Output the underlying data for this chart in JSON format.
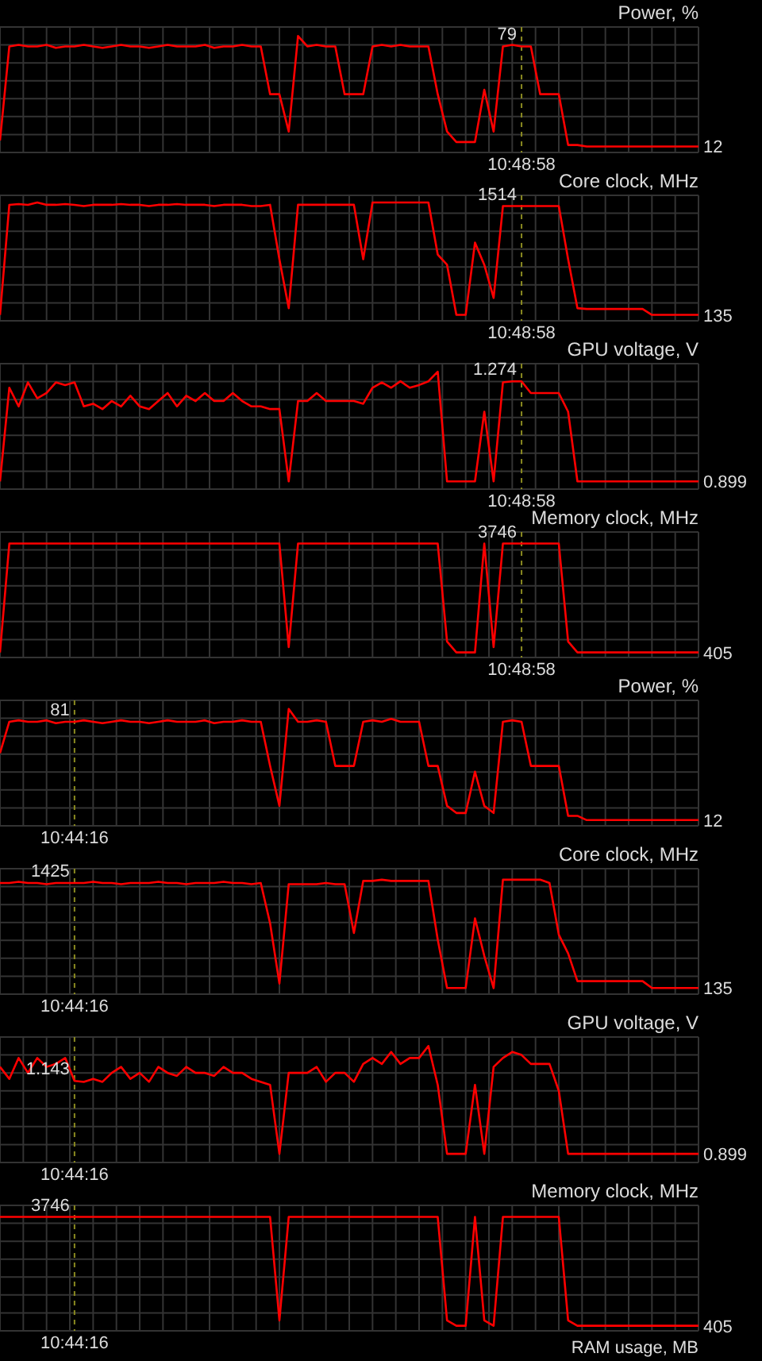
{
  "chart_data": [
    {
      "type": "line",
      "title": "Power, %",
      "grid": true,
      "ylim": [
        8,
        92
      ],
      "categories": [
        null,
        null,
        null,
        null,
        null,
        null,
        null,
        null,
        null,
        null,
        null,
        null,
        null,
        null,
        null,
        null,
        null,
        null,
        null,
        null,
        null,
        null,
        null,
        null,
        null,
        null,
        null,
        null,
        null,
        null,
        null,
        null,
        null,
        null,
        null,
        null,
        null,
        null,
        null,
        null,
        null,
        null,
        null,
        null,
        null,
        null,
        null,
        null,
        null,
        null,
        null,
        null,
        null,
        null,
        null,
        null,
        null,
        null,
        null,
        null,
        null,
        null,
        null,
        null,
        null,
        null,
        null,
        null,
        null,
        null,
        null,
        null,
        null,
        null,
        null,
        null
      ],
      "series": [
        {
          "color": "#ff0000",
          "values": [
            16,
            79,
            80,
            79,
            79,
            80,
            78,
            79,
            79,
            80,
            79,
            78,
            79,
            80,
            79,
            79,
            78,
            79,
            80,
            79,
            79,
            79,
            80,
            78,
            79,
            79,
            80,
            79,
            79,
            47,
            47,
            22,
            86,
            79,
            80,
            79,
            79,
            47,
            47,
            47,
            79,
            80,
            79,
            80,
            79,
            79,
            79,
            47,
            22,
            15,
            15,
            15,
            50,
            22,
            79,
            80,
            79,
            79,
            47,
            47,
            47,
            13,
            13,
            12,
            12,
            12,
            12,
            12,
            12,
            12,
            12,
            12,
            12,
            12,
            12,
            12
          ],
          "value_labels": [
            null,
            null,
            null,
            null,
            null,
            null,
            null,
            null,
            null,
            null,
            null,
            null,
            null,
            null,
            null,
            null,
            null,
            null,
            null,
            null,
            null,
            null,
            null,
            null,
            null,
            null,
            null,
            null,
            null,
            null,
            null,
            null,
            null,
            null,
            null,
            null,
            null,
            null,
            null,
            null,
            null,
            null,
            null,
            null,
            null,
            null,
            null,
            null,
            null,
            null,
            null,
            null,
            null,
            null,
            null,
            null,
            "79",
            null,
            null,
            null,
            null,
            null,
            null,
            null,
            null,
            null,
            null,
            null,
            null,
            null,
            null,
            null,
            null,
            null,
            null,
            "12"
          ]
        }
      ],
      "annotations": [
        "10:48:58"
      ]
    },
    {
      "type": "line",
      "title": "Core clock, MHz",
      "grid": true,
      "ylim": [
        60,
        1650
      ],
      "categories": [
        null,
        null,
        null,
        null,
        null,
        null,
        null,
        null,
        null,
        null,
        null,
        null,
        null,
        null,
        null,
        null,
        null,
        null,
        null,
        null,
        null,
        null,
        null,
        null,
        null,
        null,
        null,
        null,
        null,
        null,
        null,
        null,
        null,
        null,
        null,
        null,
        null,
        null,
        null,
        null,
        null,
        null,
        null,
        null,
        null,
        null,
        null,
        null,
        null,
        null,
        null,
        null,
        null,
        null,
        null,
        null,
        null,
        null,
        null,
        null,
        null,
        null,
        null,
        null,
        null,
        null,
        null,
        null,
        null,
        null,
        null,
        null,
        null,
        null,
        null,
        null
      ],
      "series": [
        {
          "color": "#ff0000",
          "values": [
            135,
            1530,
            1540,
            1530,
            1560,
            1530,
            1530,
            1540,
            1530,
            1514,
            1530,
            1530,
            1530,
            1540,
            1530,
            1530,
            1514,
            1530,
            1530,
            1540,
            1530,
            1530,
            1530,
            1514,
            1530,
            1530,
            1530,
            1514,
            1514,
            1530,
            840,
            220,
            1530,
            1530,
            1530,
            1530,
            1530,
            1530,
            1530,
            840,
            1560,
            1560,
            1560,
            1560,
            1560,
            1560,
            1560,
            900,
            770,
            135,
            135,
            1050,
            770,
            350,
            1514,
            1514,
            1514,
            1514,
            1514,
            1514,
            1514,
            840,
            220,
            210,
            210,
            210,
            210,
            210,
            210,
            210,
            135,
            135,
            135,
            135,
            135,
            135
          ],
          "value_labels": [
            null,
            null,
            null,
            null,
            null,
            null,
            null,
            null,
            null,
            null,
            null,
            null,
            null,
            null,
            null,
            null,
            null,
            null,
            null,
            null,
            null,
            null,
            null,
            null,
            null,
            null,
            null,
            null,
            null,
            null,
            null,
            null,
            null,
            null,
            null,
            null,
            null,
            null,
            null,
            null,
            null,
            null,
            null,
            null,
            null,
            null,
            null,
            null,
            null,
            null,
            null,
            null,
            null,
            null,
            null,
            null,
            "1514",
            null,
            null,
            null,
            null,
            null,
            null,
            null,
            null,
            null,
            null,
            null,
            null,
            null,
            null,
            null,
            null,
            null,
            null,
            "135"
          ]
        }
      ],
      "annotations": [
        "10:48:58"
      ]
    },
    {
      "type": "line",
      "title": "GPU voltage, V",
      "grid": true,
      "ylim": [
        0.87,
        1.34
      ],
      "categories": [
        null,
        null,
        null,
        null,
        null,
        null,
        null,
        null,
        null,
        null,
        null,
        null,
        null,
        null,
        null,
        null,
        null,
        null,
        null,
        null,
        null,
        null,
        null,
        null,
        null,
        null,
        null,
        null,
        null,
        null,
        null,
        null,
        null,
        null,
        null,
        null,
        null,
        null,
        null,
        null,
        null,
        null,
        null,
        null,
        null,
        null,
        null,
        null,
        null,
        null,
        null,
        null,
        null,
        null,
        null,
        null,
        null,
        null,
        null,
        null,
        null,
        null,
        null,
        null,
        null,
        null,
        null,
        null,
        null,
        null,
        null,
        null,
        null,
        null,
        null,
        null
      ],
      "series": [
        {
          "color": "#ff0000",
          "values": [
            0.899,
            1.25,
            1.18,
            1.27,
            1.21,
            1.23,
            1.27,
            1.26,
            1.27,
            1.18,
            1.19,
            1.17,
            1.2,
            1.18,
            1.22,
            1.18,
            1.17,
            1.2,
            1.23,
            1.18,
            1.22,
            1.2,
            1.23,
            1.2,
            1.2,
            1.23,
            1.2,
            1.18,
            1.18,
            1.17,
            1.17,
            0.899,
            1.2,
            1.2,
            1.23,
            1.2,
            1.2,
            1.2,
            1.2,
            1.19,
            1.25,
            1.27,
            1.25,
            1.274,
            1.25,
            1.26,
            1.274,
            1.31,
            0.899,
            0.899,
            0.899,
            0.899,
            1.16,
            0.899,
            1.27,
            1.274,
            1.274,
            1.23,
            1.23,
            1.23,
            1.23,
            1.16,
            0.899,
            0.899,
            0.899,
            0.899,
            0.899,
            0.899,
            0.899,
            0.899,
            0.899,
            0.899,
            0.899,
            0.899,
            0.899,
            0.899
          ],
          "value_labels": [
            null,
            null,
            null,
            null,
            null,
            null,
            null,
            null,
            null,
            null,
            null,
            null,
            null,
            null,
            null,
            null,
            null,
            null,
            null,
            null,
            null,
            null,
            null,
            null,
            null,
            null,
            null,
            null,
            null,
            null,
            null,
            null,
            null,
            null,
            null,
            null,
            null,
            null,
            null,
            null,
            null,
            null,
            null,
            null,
            null,
            null,
            null,
            null,
            null,
            null,
            null,
            null,
            null,
            null,
            null,
            null,
            "1.274",
            null,
            null,
            null,
            null,
            null,
            null,
            null,
            null,
            null,
            null,
            null,
            null,
            null,
            null,
            null,
            null,
            null,
            null,
            "0.899"
          ]
        }
      ],
      "annotations": [
        "10:48:58"
      ]
    },
    {
      "type": "line",
      "title": "Memory clock, MHz",
      "grid": true,
      "ylim": [
        250,
        4100
      ],
      "categories": [
        null,
        null,
        null,
        null,
        null,
        null,
        null,
        null,
        null,
        null,
        null,
        null,
        null,
        null,
        null,
        null,
        null,
        null,
        null,
        null,
        null,
        null,
        null,
        null,
        null,
        null,
        null,
        null,
        null,
        null,
        null,
        null,
        null,
        null,
        null,
        null,
        null,
        null,
        null,
        null,
        null,
        null,
        null,
        null,
        null,
        null,
        null,
        null,
        null,
        null,
        null,
        null,
        null,
        null,
        null,
        null,
        null,
        null,
        null,
        null,
        null,
        null,
        null,
        null,
        null,
        null,
        null,
        null,
        null,
        null,
        null,
        null,
        null,
        null,
        null,
        null
      ],
      "series": [
        {
          "color": "#ff0000",
          "values": [
            405,
            3746,
            3746,
            3746,
            3746,
            3746,
            3746,
            3746,
            3746,
            3746,
            3746,
            3746,
            3746,
            3746,
            3746,
            3746,
            3746,
            3746,
            3746,
            3746,
            3746,
            3746,
            3746,
            3746,
            3746,
            3746,
            3746,
            3746,
            3746,
            3746,
            3746,
            570,
            3746,
            3746,
            3746,
            3746,
            3746,
            3746,
            3746,
            3746,
            3746,
            3746,
            3746,
            3746,
            3746,
            3746,
            3746,
            3746,
            740,
            405,
            405,
            405,
            3746,
            570,
            3746,
            3746,
            3746,
            3746,
            3746,
            3746,
            3746,
            740,
            405,
            405,
            405,
            405,
            405,
            405,
            405,
            405,
            405,
            405,
            405,
            405,
            405,
            405
          ],
          "value_labels": [
            null,
            null,
            null,
            null,
            null,
            null,
            null,
            null,
            null,
            null,
            null,
            null,
            null,
            null,
            null,
            null,
            null,
            null,
            null,
            null,
            null,
            null,
            null,
            null,
            null,
            null,
            null,
            null,
            null,
            null,
            null,
            null,
            null,
            null,
            null,
            null,
            null,
            null,
            null,
            null,
            null,
            null,
            null,
            null,
            null,
            null,
            null,
            null,
            null,
            null,
            null,
            null,
            null,
            null,
            null,
            null,
            "3746",
            null,
            null,
            null,
            null,
            null,
            null,
            null,
            null,
            null,
            null,
            null,
            null,
            null,
            null,
            null,
            null,
            null,
            null,
            "405"
          ]
        }
      ],
      "annotations": [
        "10:48:58"
      ]
    },
    {
      "type": "line",
      "title": "Power, %",
      "grid": true,
      "ylim": [
        8,
        96
      ],
      "categories": [
        null,
        null,
        null,
        null,
        null,
        null,
        null,
        null,
        null,
        null,
        null,
        null,
        null,
        null,
        null,
        null,
        null,
        null,
        null,
        null,
        null,
        null,
        null,
        null,
        null,
        null,
        null,
        null,
        null,
        null,
        null,
        null,
        null,
        null,
        null,
        null,
        null,
        null,
        null,
        null,
        null,
        null,
        null,
        null,
        null,
        null,
        null,
        null,
        null,
        null,
        null,
        null,
        null,
        null,
        null,
        null,
        null,
        null,
        null,
        null,
        null,
        null,
        null,
        null,
        null,
        null,
        null,
        null,
        null,
        null,
        null,
        null,
        null,
        null,
        null,
        null
      ],
      "series": [
        {
          "color": "#ff0000",
          "values": [
            59,
            81,
            82,
            81,
            81,
            82,
            80,
            81,
            81,
            82,
            81,
            80,
            81,
            82,
            81,
            81,
            80,
            81,
            82,
            81,
            81,
            81,
            82,
            80,
            81,
            81,
            82,
            81,
            81,
            50,
            22,
            90,
            81,
            81,
            82,
            81,
            50,
            50,
            50,
            81,
            82,
            81,
            83,
            81,
            81,
            81,
            50,
            50,
            22,
            17,
            17,
            46,
            22,
            17,
            81,
            82,
            81,
            50,
            50,
            50,
            50,
            15,
            15,
            12,
            12,
            12,
            12,
            12,
            12,
            12,
            12,
            12,
            12,
            12,
            12,
            12
          ],
          "value_labels": [
            null,
            null,
            null,
            null,
            null,
            null,
            null,
            null,
            "81",
            null,
            null,
            null,
            null,
            null,
            null,
            null,
            null,
            null,
            null,
            null,
            null,
            null,
            null,
            null,
            null,
            null,
            null,
            null,
            null,
            null,
            null,
            null,
            null,
            null,
            null,
            null,
            null,
            null,
            null,
            null,
            null,
            null,
            null,
            null,
            null,
            null,
            null,
            null,
            null,
            null,
            null,
            null,
            null,
            null,
            null,
            null,
            null,
            null,
            null,
            null,
            null,
            null,
            null,
            null,
            null,
            null,
            null,
            null,
            null,
            null,
            null,
            null,
            null,
            null,
            null,
            "12"
          ]
        }
      ],
      "annotations": [
        "10:44:16"
      ]
    },
    {
      "type": "line",
      "title": "Core clock, MHz",
      "grid": true,
      "ylim": [
        60,
        1600
      ],
      "categories": [
        null,
        null,
        null,
        null,
        null,
        null,
        null,
        null,
        null,
        null,
        null,
        null,
        null,
        null,
        null,
        null,
        null,
        null,
        null,
        null,
        null,
        null,
        null,
        null,
        null,
        null,
        null,
        null,
        null,
        null,
        null,
        null,
        null,
        null,
        null,
        null,
        null,
        null,
        null,
        null,
        null,
        null,
        null,
        null,
        null,
        null,
        null,
        null,
        null,
        null,
        null,
        null,
        null,
        null,
        null,
        null,
        null,
        null,
        null,
        null,
        null,
        null,
        null,
        null,
        null,
        null,
        null,
        null,
        null,
        null,
        null,
        null,
        null,
        null,
        null,
        null
      ],
      "series": [
        {
          "color": "#ff0000",
          "values": [
            1425,
            1425,
            1440,
            1425,
            1425,
            1410,
            1425,
            1425,
            1425,
            1425,
            1440,
            1425,
            1425,
            1410,
            1425,
            1425,
            1425,
            1440,
            1425,
            1425,
            1410,
            1425,
            1425,
            1425,
            1440,
            1425,
            1425,
            1410,
            1425,
            930,
            190,
            1410,
            1410,
            1410,
            1410,
            1425,
            1410,
            1410,
            810,
            1450,
            1450,
            1465,
            1450,
            1450,
            1450,
            1450,
            1450,
            730,
            135,
            135,
            135,
            990,
            530,
            135,
            1465,
            1465,
            1465,
            1465,
            1465,
            1425,
            790,
            560,
            220,
            220,
            220,
            220,
            220,
            220,
            220,
            220,
            135,
            135,
            135,
            135,
            135,
            135
          ],
          "value_labels": [
            null,
            null,
            null,
            null,
            null,
            null,
            null,
            null,
            "1425",
            null,
            null,
            null,
            null,
            null,
            null,
            null,
            null,
            null,
            null,
            null,
            null,
            null,
            null,
            null,
            null,
            null,
            null,
            null,
            null,
            null,
            null,
            null,
            null,
            null,
            null,
            null,
            null,
            null,
            null,
            null,
            null,
            null,
            null,
            null,
            null,
            null,
            null,
            null,
            null,
            null,
            null,
            null,
            null,
            null,
            null,
            null,
            null,
            null,
            null,
            null,
            null,
            null,
            null,
            null,
            null,
            null,
            null,
            null,
            null,
            null,
            null,
            null,
            null,
            null,
            null,
            "135"
          ]
        }
      ],
      "annotations": [
        "10:44:16"
      ]
    },
    {
      "type": "line",
      "title": "GPU voltage, V",
      "grid": true,
      "ylim": [
        0.87,
        1.29
      ],
      "categories": [
        null,
        null,
        null,
        null,
        null,
        null,
        null,
        null,
        null,
        null,
        null,
        null,
        null,
        null,
        null,
        null,
        null,
        null,
        null,
        null,
        null,
        null,
        null,
        null,
        null,
        null,
        null,
        null,
        null,
        null,
        null,
        null,
        null,
        null,
        null,
        null,
        null,
        null,
        null,
        null,
        null,
        null,
        null,
        null,
        null,
        null,
        null,
        null,
        null,
        null,
        null,
        null,
        null,
        null,
        null,
        null,
        null,
        null,
        null,
        null,
        null,
        null,
        null,
        null,
        null,
        null,
        null,
        null,
        null,
        null,
        null,
        null,
        null,
        null,
        null,
        null
      ],
      "series": [
        {
          "color": "#ff0000",
          "values": [
            1.19,
            1.15,
            1.22,
            1.17,
            1.22,
            1.19,
            1.2,
            1.22,
            1.143,
            1.14,
            1.15,
            1.14,
            1.17,
            1.19,
            1.15,
            1.17,
            1.14,
            1.19,
            1.17,
            1.16,
            1.19,
            1.17,
            1.17,
            1.16,
            1.19,
            1.17,
            1.17,
            1.15,
            1.14,
            1.13,
            0.899,
            1.17,
            1.17,
            1.17,
            1.19,
            1.14,
            1.17,
            1.17,
            1.14,
            1.2,
            1.22,
            1.2,
            1.24,
            1.2,
            1.22,
            1.22,
            1.26,
            1.13,
            0.899,
            0.899,
            0.899,
            1.13,
            0.899,
            1.19,
            1.22,
            1.24,
            1.23,
            1.2,
            1.2,
            1.2,
            1.11,
            0.899,
            0.899,
            0.899,
            0.899,
            0.899,
            0.899,
            0.899,
            0.899,
            0.899,
            0.899,
            0.899,
            0.899,
            0.899,
            0.899,
            0.899
          ],
          "value_labels": [
            null,
            null,
            null,
            null,
            null,
            null,
            null,
            null,
            "1.143",
            null,
            null,
            null,
            null,
            null,
            null,
            null,
            null,
            null,
            null,
            null,
            null,
            null,
            null,
            null,
            null,
            null,
            null,
            null,
            null,
            null,
            null,
            null,
            null,
            null,
            null,
            null,
            null,
            null,
            null,
            null,
            null,
            null,
            null,
            null,
            null,
            null,
            null,
            null,
            null,
            null,
            null,
            null,
            null,
            null,
            null,
            null,
            null,
            null,
            null,
            null,
            null,
            null,
            null,
            null,
            null,
            null,
            null,
            null,
            null,
            null,
            null,
            null,
            null,
            null,
            null,
            "0.899"
          ]
        }
      ],
      "annotations": [
        "10:44:16"
      ]
    },
    {
      "type": "line",
      "title": "Memory clock, MHz",
      "grid": true,
      "ylim": [
        250,
        4100
      ],
      "categories": [
        null,
        null,
        null,
        null,
        null,
        null,
        null,
        null,
        null,
        null,
        null,
        null,
        null,
        null,
        null,
        null,
        null,
        null,
        null,
        null,
        null,
        null,
        null,
        null,
        null,
        null,
        null,
        null,
        null,
        null,
        null,
        null,
        null,
        null,
        null,
        null,
        null,
        null,
        null,
        null,
        null,
        null,
        null,
        null,
        null,
        null,
        null,
        null,
        null,
        null,
        null,
        null,
        null,
        null,
        null,
        null,
        null,
        null,
        null,
        null,
        null,
        null,
        null,
        null,
        null,
        null,
        null,
        null,
        null,
        null,
        null,
        null,
        null,
        null,
        null,
        null
      ],
      "series": [
        {
          "color": "#ff0000",
          "values": [
            3746,
            3746,
            3746,
            3746,
            3746,
            3746,
            3746,
            3746,
            3746,
            3746,
            3746,
            3746,
            3746,
            3746,
            3746,
            3746,
            3746,
            3746,
            3746,
            3746,
            3746,
            3746,
            3746,
            3746,
            3746,
            3746,
            3746,
            3746,
            3746,
            3746,
            570,
            3746,
            3746,
            3746,
            3746,
            3746,
            3746,
            3746,
            3746,
            3746,
            3746,
            3746,
            3746,
            3746,
            3746,
            3746,
            3746,
            3746,
            570,
            405,
            405,
            3746,
            570,
            405,
            3746,
            3746,
            3746,
            3746,
            3746,
            3746,
            3746,
            570,
            405,
            405,
            405,
            405,
            405,
            405,
            405,
            405,
            405,
            405,
            405,
            405,
            405,
            405
          ],
          "value_labels": [
            null,
            null,
            null,
            null,
            null,
            null,
            null,
            null,
            "3746",
            null,
            null,
            null,
            null,
            null,
            null,
            null,
            null,
            null,
            null,
            null,
            null,
            null,
            null,
            null,
            null,
            null,
            null,
            null,
            null,
            null,
            null,
            null,
            null,
            null,
            null,
            null,
            null,
            null,
            null,
            null,
            null,
            null,
            null,
            null,
            null,
            null,
            null,
            null,
            null,
            null,
            null,
            null,
            null,
            null,
            null,
            null,
            null,
            null,
            null,
            null,
            null,
            null,
            null,
            null,
            null,
            null,
            null,
            null,
            null,
            null,
            null,
            null,
            null,
            null,
            null,
            "405"
          ]
        }
      ],
      "annotations": [
        "10:44:16",
        "RAM usage, MB"
      ]
    }
  ]
}
